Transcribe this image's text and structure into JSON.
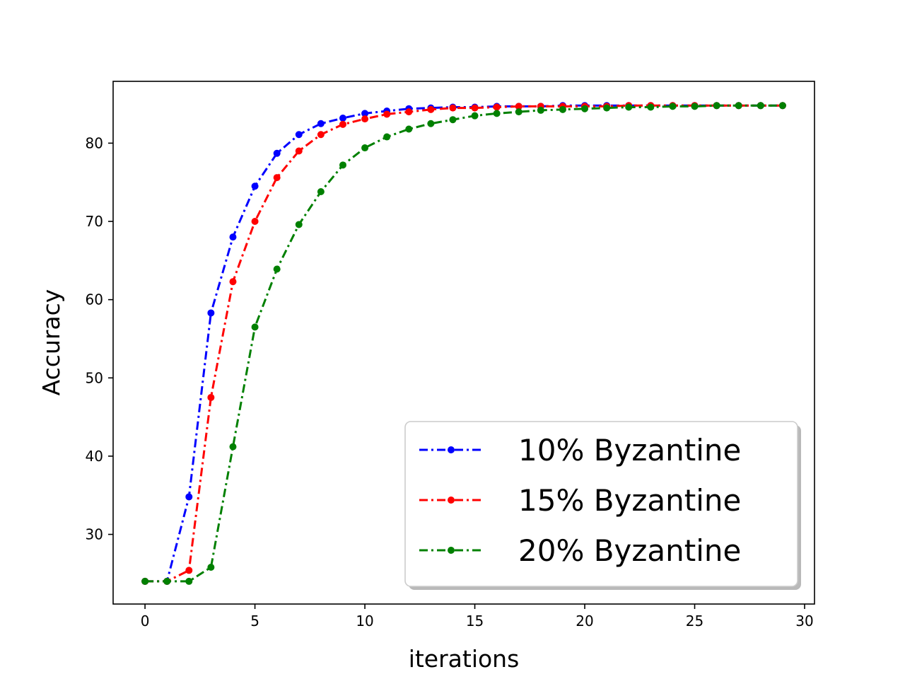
{
  "chart_data": {
    "type": "line",
    "xlabel": "iterations",
    "ylabel": "Accuracy",
    "xlim": [
      -1.45,
      30.45
    ],
    "ylim": [
      21.1,
      87.9
    ],
    "xticks": [
      0,
      5,
      10,
      15,
      20,
      25,
      30
    ],
    "yticks": [
      30,
      40,
      50,
      60,
      70,
      80
    ],
    "grid": false,
    "legend_position": "bottom-right",
    "x": [
      0,
      1,
      2,
      3,
      4,
      5,
      6,
      7,
      8,
      9,
      10,
      11,
      12,
      13,
      14,
      15,
      16,
      17,
      18,
      19,
      20,
      21,
      22,
      23,
      24,
      25,
      26,
      27,
      28,
      29
    ],
    "series": [
      {
        "name": "10% Byzantine",
        "color": "#0000ff",
        "values": [
          24.0,
          24.0,
          34.8,
          58.3,
          68.0,
          74.5,
          78.7,
          81.1,
          82.5,
          83.2,
          83.8,
          84.1,
          84.4,
          84.5,
          84.6,
          84.6,
          84.7,
          84.7,
          84.7,
          84.8,
          84.8,
          84.8,
          84.8,
          84.8,
          84.8,
          84.8,
          84.8,
          84.8,
          84.8,
          84.8
        ]
      },
      {
        "name": "15% Byzantine",
        "color": "#ff0000",
        "values": [
          24.0,
          24.0,
          25.4,
          47.5,
          62.3,
          70.0,
          75.6,
          79.0,
          81.1,
          82.4,
          83.1,
          83.7,
          84.0,
          84.3,
          84.5,
          84.5,
          84.6,
          84.7,
          84.7,
          84.7,
          84.7,
          84.7,
          84.8,
          84.8,
          84.8,
          84.8,
          84.8,
          84.8,
          84.8,
          84.8
        ]
      },
      {
        "name": "20% Byzantine",
        "color": "#008000",
        "values": [
          24.0,
          24.0,
          24.0,
          25.8,
          41.2,
          56.5,
          63.9,
          69.6,
          73.8,
          77.2,
          79.4,
          80.8,
          81.8,
          82.5,
          83.0,
          83.5,
          83.8,
          84.0,
          84.2,
          84.3,
          84.4,
          84.5,
          84.6,
          84.6,
          84.7,
          84.7,
          84.8,
          84.8,
          84.8,
          84.8
        ]
      }
    ]
  }
}
